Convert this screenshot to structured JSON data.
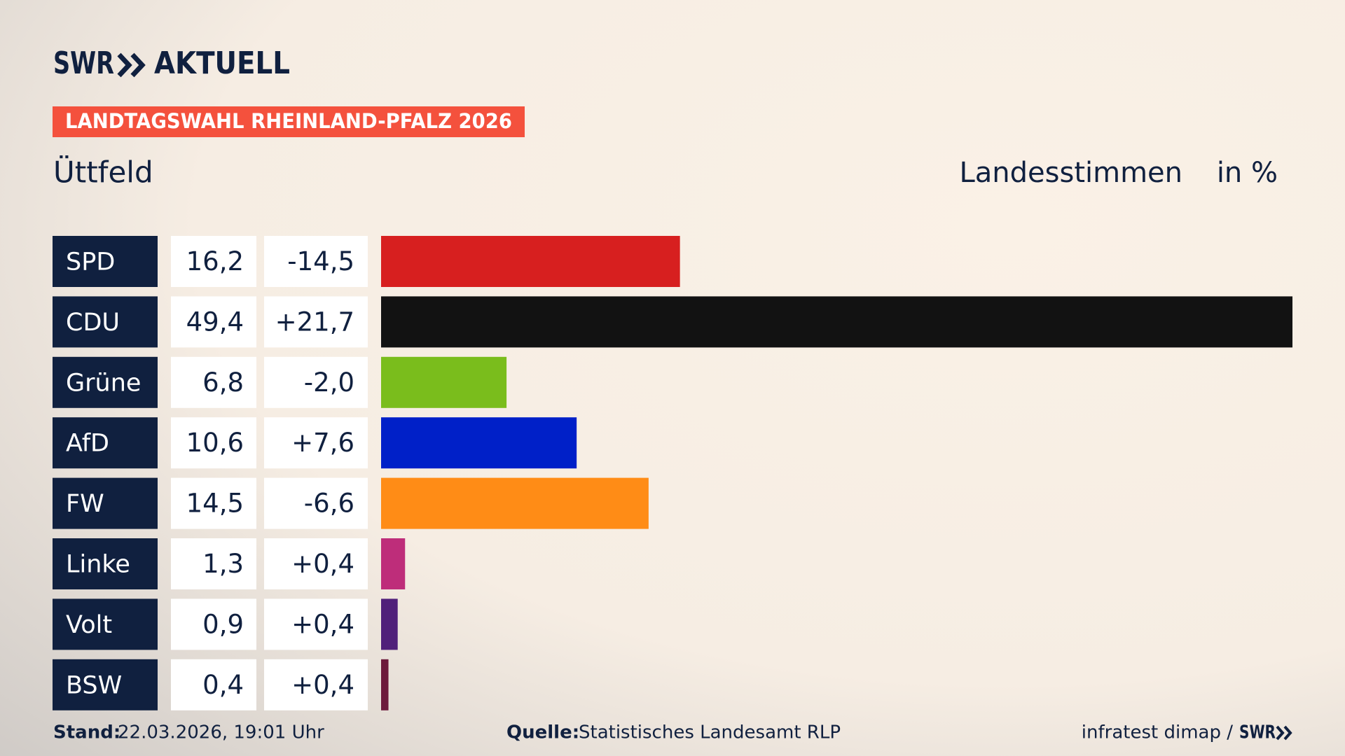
{
  "chart_data": {
    "type": "bar",
    "brand": "SWR",
    "brand_section": "AKTUELL",
    "badge": "LANDTAGSWAHL RHEINLAND-PFALZ 2026",
    "title": "Üttfeld",
    "measure": "Landesstimmen",
    "unit": "in %",
    "categories": [
      "SPD",
      "CDU",
      "Grüne",
      "AfD",
      "FW",
      "Linke",
      "Volt",
      "BSW"
    ],
    "values": [
      16.2,
      49.4,
      6.8,
      10.6,
      14.5,
      1.3,
      0.9,
      0.4
    ],
    "value_labels": [
      "16,2",
      "49,4",
      "6,8",
      "10,6",
      "14,5",
      "1,3",
      "0,9",
      "0,4"
    ],
    "changes": [
      "-14,5",
      "+21,7",
      "-2,0",
      "+7,6",
      "-6,6",
      "+0,4",
      "+0,4",
      "+0,4"
    ],
    "colors": [
      "#d71f1f",
      "#121212",
      "#7abd1c",
      "#0020c8",
      "#ff8c16",
      "#be2d7a",
      "#50207a",
      "#6d1a3c"
    ],
    "xlim": [
      0,
      49.4
    ],
    "footer": {
      "stand_label": "Stand:",
      "stand": "22.03.2026, 19:01 Uhr",
      "source_label": "Quelle:",
      "source": "Statistisches Landesamt RLP",
      "credit": "infratest dimap /",
      "credit_brand": "SWR"
    }
  }
}
